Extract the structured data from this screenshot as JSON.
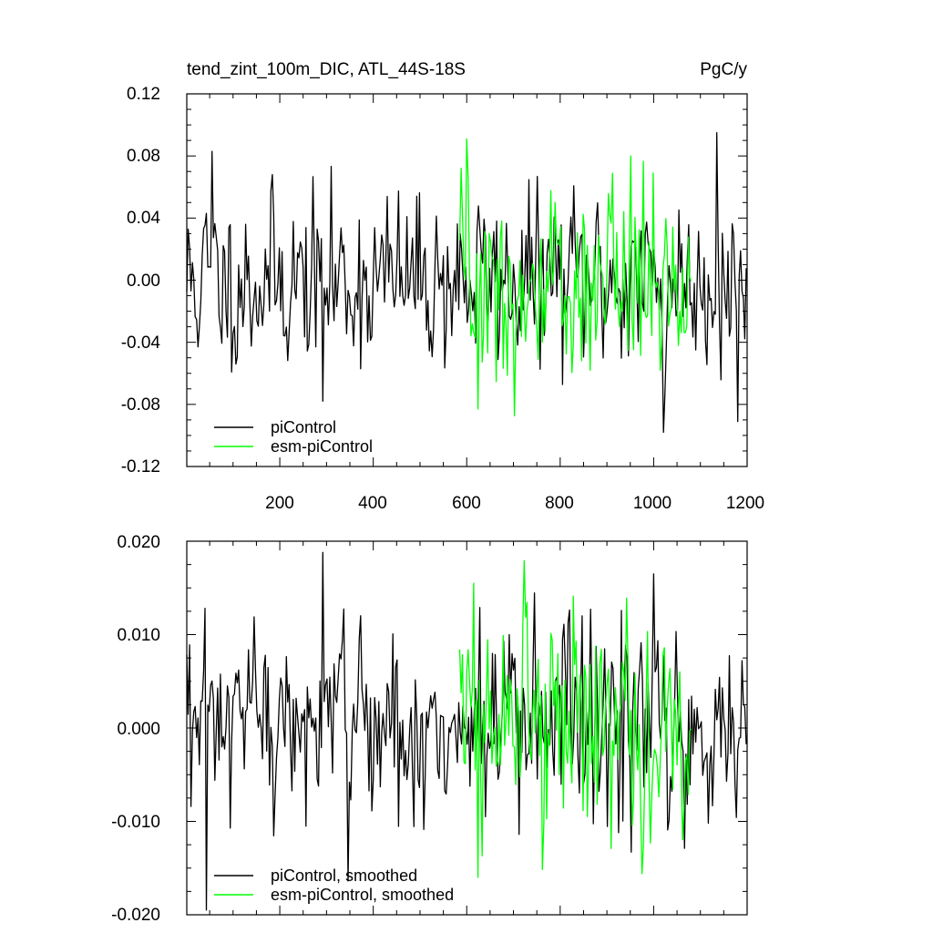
{
  "chart_data": [
    {
      "type": "line",
      "title": "tend_zint_100m_DIC, ATL_44S-18S",
      "units": "PgC/y",
      "xlim": [
        1,
        1200
      ],
      "ylim": [
        -0.12,
        0.12
      ],
      "x_ticks": [
        200,
        400,
        600,
        800,
        1000,
        1200
      ],
      "y_ticks": [
        -0.12,
        -0.08,
        -0.04,
        0.0,
        0.04,
        0.08,
        0.12
      ],
      "y_tick_labels": [
        "-0.12",
        "-0.08",
        "-0.04",
        "0.00",
        "0.04",
        "0.08",
        "0.12"
      ],
      "legend_placement": "bottom-left",
      "series": [
        {
          "name": "piControl",
          "color": "#000000",
          "x_start": 1,
          "x_end": 1200,
          "sample_step": 3,
          "spread": 0.027,
          "peaks": [
            [
              54,
              0.083
            ],
            [
              290,
              -0.078
            ],
            [
              1020,
              -0.098
            ],
            [
              1135,
              0.095
            ],
            [
              1180,
              -0.091
            ]
          ]
        },
        {
          "name": "esm-piControl",
          "color": "#00ff00",
          "x_start": 585,
          "x_end": 1080,
          "sample_step": 3,
          "spread": 0.03,
          "peaks": [
            [
              600,
              0.091
            ],
            [
              625,
              -0.083
            ],
            [
              950,
              0.08
            ],
            [
              1000,
              0.069
            ]
          ]
        }
      ]
    },
    {
      "type": "line",
      "title": "",
      "xlim": [
        1,
        1200
      ],
      "ylim": [
        -0.02,
        0.02
      ],
      "y_ticks": [
        -0.02,
        -0.01,
        0.0,
        0.01,
        0.02
      ],
      "y_tick_labels": [
        "-0.020",
        "-0.010",
        "0.000",
        "0.010",
        "0.020"
      ],
      "legend_placement": "bottom-left",
      "series": [
        {
          "name": "piControl, smoothed",
          "color": "#000000",
          "x_start": 1,
          "x_end": 1200,
          "sample_step": 3,
          "spread": 0.0055,
          "peaks": [
            [
              42,
              -0.0195
            ],
            [
              290,
              0.0188
            ],
            [
              1000,
              0.0165
            ]
          ]
        },
        {
          "name": "esm-piControl, smoothed",
          "color": "#00ff00",
          "x_start": 585,
          "x_end": 1080,
          "sample_step": 3,
          "spread": 0.0058,
          "peaks": [
            [
              615,
              0.0155
            ],
            [
              625,
              -0.016
            ]
          ]
        }
      ]
    }
  ]
}
